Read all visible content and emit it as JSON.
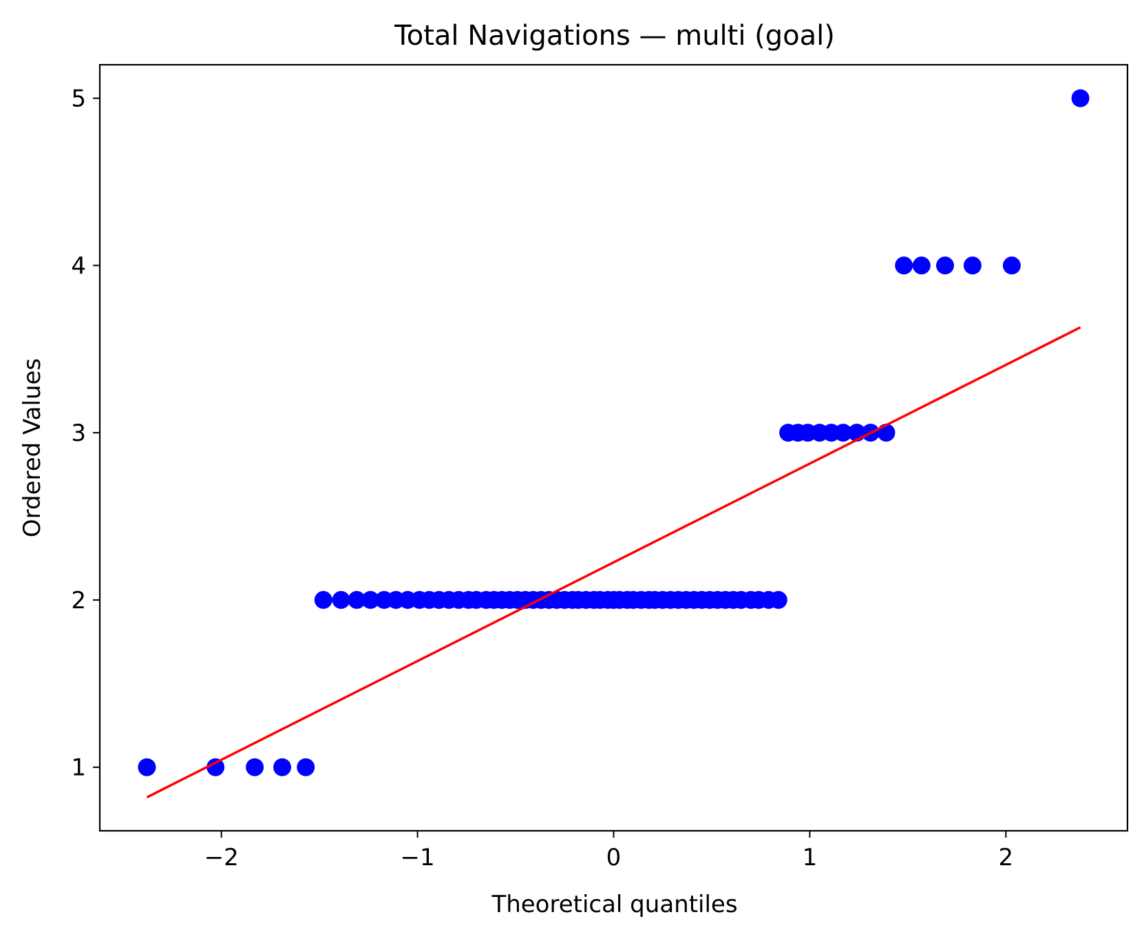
{
  "chart_data": {
    "type": "scatter",
    "title": "Total Navigations — multi (goal)",
    "xlabel": "Theoretical quantiles",
    "ylabel": "Ordered Values",
    "xlim": [
      -2.62,
      2.62
    ],
    "ylim": [
      0.62,
      5.2
    ],
    "x_ticks": [
      -2,
      -1,
      0,
      1,
      2
    ],
    "x_tick_labels": [
      "−2",
      "−1",
      "0",
      "1",
      "2"
    ],
    "y_ticks": [
      1,
      2,
      3,
      4,
      5
    ],
    "y_tick_labels": [
      "1",
      "2",
      "3",
      "4",
      "5"
    ],
    "grid": false,
    "colors": {
      "points": "#0000ff",
      "fit_line": "#ff0000",
      "axes": "#000000"
    },
    "series": [
      {
        "kind": "points",
        "x": [
          -2.38,
          -2.03,
          -1.83,
          -1.69,
          -1.57,
          -1.48,
          -1.39,
          -1.31,
          -1.24,
          -1.17,
          -1.11,
          -1.05,
          -0.99,
          -0.94,
          -0.89,
          -0.84,
          -0.79,
          -0.74,
          -0.7,
          -0.65,
          -0.61,
          -0.57,
          -0.53,
          -0.49,
          -0.45,
          -0.41,
          -0.37,
          -0.33,
          -0.29,
          -0.25,
          -0.21,
          -0.18,
          -0.14,
          -0.1,
          -0.07,
          -0.03,
          0.0,
          0.03,
          0.07,
          0.1,
          0.14,
          0.18,
          0.21,
          0.25,
          0.29,
          0.33,
          0.37,
          0.41,
          0.45,
          0.49,
          0.53,
          0.57,
          0.61,
          0.65,
          0.7,
          0.74,
          0.79,
          0.84,
          0.89,
          0.94,
          0.99,
          1.05,
          1.11,
          1.17,
          1.24,
          1.31,
          1.39,
          1.48,
          1.57,
          1.69,
          1.83,
          2.03,
          2.38
        ],
        "y": [
          1,
          1,
          1,
          1,
          1,
          2,
          2,
          2,
          2,
          2,
          2,
          2,
          2,
          2,
          2,
          2,
          2,
          2,
          2,
          2,
          2,
          2,
          2,
          2,
          2,
          2,
          2,
          2,
          2,
          2,
          2,
          2,
          2,
          2,
          2,
          2,
          2,
          2,
          2,
          2,
          2,
          2,
          2,
          2,
          2,
          2,
          2,
          2,
          2,
          2,
          2,
          2,
          2,
          2,
          2,
          2,
          2,
          2,
          3,
          3,
          3,
          3,
          3,
          3,
          3,
          3,
          3,
          4,
          4,
          4,
          4,
          4,
          5
        ]
      },
      {
        "kind": "line",
        "x": [
          -2.38,
          2.38
        ],
        "y": [
          0.82,
          3.63
        ]
      }
    ]
  }
}
